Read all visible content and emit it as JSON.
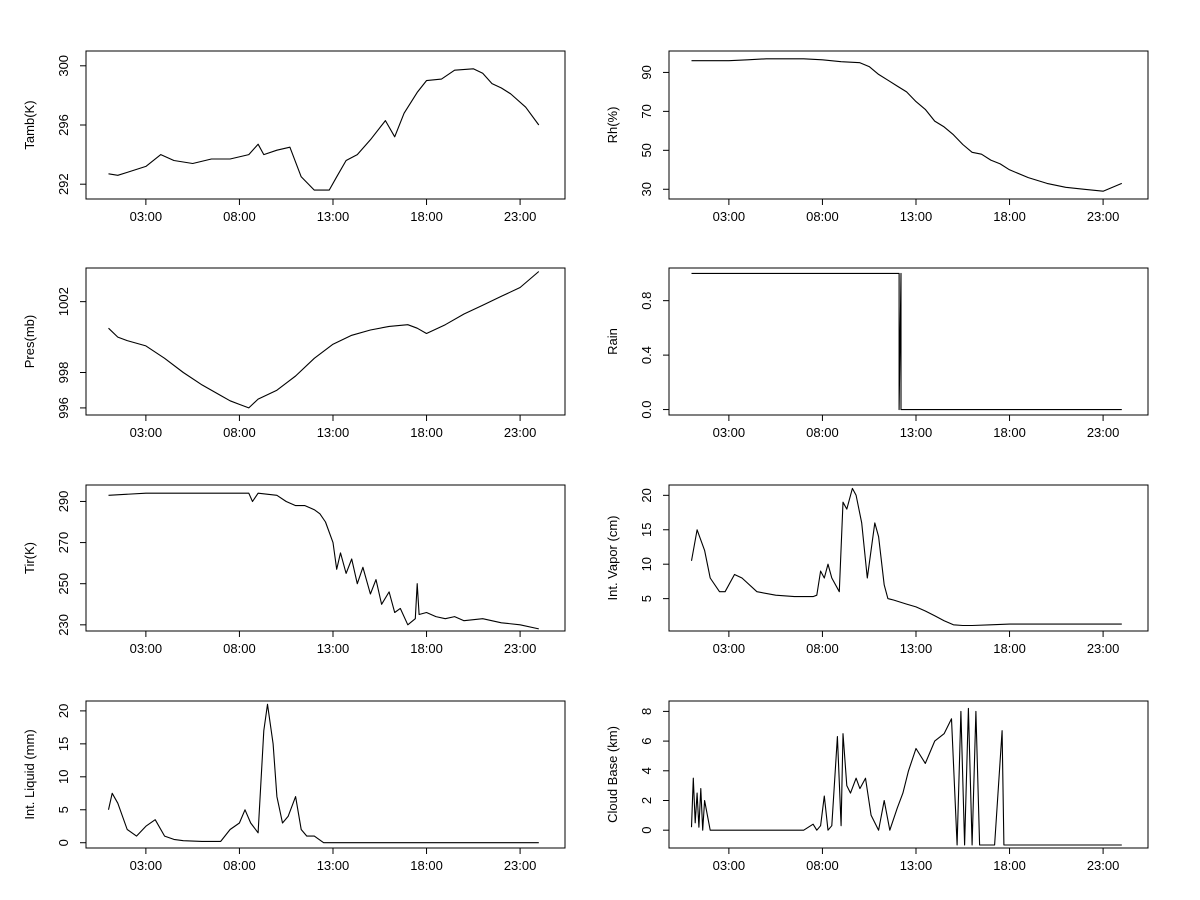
{
  "chart_data": [
    {
      "type": "line",
      "ylabel": "Tamb(K)",
      "xlabel": "",
      "title": "",
      "xticks": [
        "03:00",
        "08:00",
        "13:00",
        "18:00",
        "23:00"
      ],
      "yticks": [
        292,
        296,
        300
      ],
      "ylim": [
        291.0,
        301.0
      ],
      "xlim": [
        -0.2,
        25.4
      ],
      "series": [
        {
          "name": "Tamb",
          "x": [
            1,
            1.5,
            2,
            3,
            3.8,
            4.5,
            5.5,
            6.5,
            7.5,
            8.5,
            9,
            9.3,
            10,
            10.7,
            11.3,
            12,
            12.8,
            13.2,
            13.7,
            14.3,
            15,
            15.8,
            16.3,
            16.8,
            17.5,
            18,
            18.8,
            19.5,
            20.5,
            21,
            21.5,
            22,
            22.5,
            23.3,
            24
          ],
          "y": [
            292.7,
            292.6,
            292.8,
            293.2,
            294.0,
            293.6,
            293.4,
            293.7,
            293.7,
            294.0,
            294.7,
            294.0,
            294.3,
            294.5,
            292.5,
            291.6,
            291.6,
            292.5,
            293.6,
            294.0,
            295.0,
            296.3,
            295.2,
            296.8,
            298.2,
            299.0,
            299.1,
            299.7,
            299.8,
            299.5,
            298.8,
            298.5,
            298.1,
            297.2,
            296.0
          ]
        }
      ]
    },
    {
      "type": "line",
      "ylabel": "Rh(%)",
      "xlabel": "",
      "title": "",
      "xticks": [
        "03:00",
        "08:00",
        "13:00",
        "18:00",
        "23:00"
      ],
      "yticks": [
        30,
        50,
        70,
        90
      ],
      "ylim": [
        25.0,
        101.0
      ],
      "xlim": [
        -0.2,
        25.4
      ],
      "series": [
        {
          "name": "Rh",
          "x": [
            1,
            2,
            3,
            4,
            5,
            6,
            7,
            8,
            9,
            10,
            10.5,
            11,
            11.5,
            12,
            12.5,
            13,
            13.5,
            14,
            14.5,
            15,
            15.5,
            16,
            16.5,
            17,
            17.5,
            18,
            19,
            20,
            21,
            22,
            23,
            24
          ],
          "y": [
            96,
            96,
            96,
            96.5,
            97,
            97,
            97,
            96.5,
            95.5,
            95,
            93,
            89,
            86,
            83,
            80,
            75,
            71,
            65,
            62,
            58,
            53,
            49,
            48,
            45,
            43,
            40,
            36,
            33,
            31,
            30,
            29,
            33
          ]
        }
      ]
    },
    {
      "type": "line",
      "ylabel": "Pres(mb)",
      "xlabel": "",
      "title": "",
      "xticks": [
        "03:00",
        "08:00",
        "13:00",
        "18:00",
        "23:00"
      ],
      "yticks": [
        996,
        998,
        1002
      ],
      "ylim": [
        995.6,
        1003.9
      ],
      "xlim": [
        -0.2,
        25.4
      ],
      "series": [
        {
          "name": "Pres",
          "x": [
            1,
            1.5,
            2,
            3,
            4,
            5,
            6,
            7,
            7.5,
            8,
            8.5,
            9,
            10,
            11,
            12,
            13,
            14,
            15,
            16,
            17,
            17.5,
            18,
            19,
            20,
            21,
            22,
            23,
            24
          ],
          "y": [
            1000.5,
            1000.0,
            999.8,
            999.5,
            998.8,
            998.0,
            997.3,
            996.7,
            996.4,
            996.2,
            996.0,
            996.5,
            997.0,
            997.8,
            998.8,
            999.6,
            1000.1,
            1000.4,
            1000.6,
            1000.7,
            1000.5,
            1000.2,
            1000.7,
            1001.3,
            1001.8,
            1002.3,
            1002.8,
            1003.7
          ]
        }
      ]
    },
    {
      "type": "line",
      "ylabel": "Rain",
      "xlabel": "",
      "title": "",
      "xticks": [
        "03:00",
        "08:00",
        "13:00",
        "18:00",
        "23:00"
      ],
      "yticks": [
        "0.0",
        "0.4",
        "0.8"
      ],
      "ylim": [
        -0.04,
        1.04
      ],
      "xlim": [
        -0.2,
        25.4
      ],
      "series": [
        {
          "name": "Rain",
          "x": [
            1,
            12.1,
            12.1,
            12.2,
            12.2,
            24
          ],
          "y": [
            1,
            1,
            0,
            1,
            0,
            0
          ]
        }
      ]
    },
    {
      "type": "line",
      "ylabel": "Tir(K)",
      "xlabel": "",
      "title": "",
      "xticks": [
        "03:00",
        "08:00",
        "13:00",
        "18:00",
        "23:00"
      ],
      "yticks": [
        230,
        250,
        270,
        290
      ],
      "ylim": [
        227.0,
        298.0
      ],
      "xlim": [
        -0.2,
        25.4
      ],
      "series": [
        {
          "name": "Tir",
          "x": [
            1,
            3,
            5,
            6,
            7,
            8,
            8.5,
            8.7,
            9,
            10,
            10.5,
            11,
            11.5,
            12,
            12.3,
            12.6,
            13,
            13.2,
            13.4,
            13.7,
            14,
            14.3,
            14.6,
            15,
            15.3,
            15.6,
            16,
            16.3,
            16.6,
            17,
            17.4,
            17.5,
            17.6,
            18,
            18.5,
            19,
            19.5,
            20,
            21,
            22,
            23,
            24
          ],
          "y": [
            293,
            294,
            294,
            294,
            294,
            294,
            294,
            290,
            294,
            293,
            290,
            288,
            288,
            286,
            284,
            280,
            270,
            257,
            265,
            255,
            262,
            250,
            258,
            245,
            252,
            240,
            246,
            236,
            238,
            230,
            233,
            250,
            235,
            236,
            234,
            233,
            234,
            232,
            233,
            231,
            230,
            228
          ]
        }
      ]
    },
    {
      "type": "line",
      "ylabel": "Int. Vapor (cm)",
      "xlabel": "",
      "title": "",
      "xticks": [
        "03:00",
        "08:00",
        "13:00",
        "18:00",
        "23:00"
      ],
      "yticks": [
        5,
        10,
        15,
        20
      ],
      "ylim": [
        0.3,
        21.5
      ],
      "xlim": [
        -0.2,
        25.4
      ],
      "series": [
        {
          "name": "Int. Vapor",
          "x": [
            1,
            1.3,
            1.7,
            2,
            2.5,
            2.8,
            3.3,
            3.7,
            4.5,
            5.5,
            6.5,
            7.5,
            7.7,
            7.9,
            8.1,
            8.3,
            8.5,
            8.9,
            9.1,
            9.3,
            9.6,
            9.8,
            10.1,
            10.4,
            10.8,
            11,
            11.3,
            11.5,
            11.8,
            12.5,
            13,
            13.5,
            14,
            14.5,
            15,
            15.5,
            16,
            17,
            18,
            20,
            22,
            24
          ],
          "y": [
            10.5,
            15,
            12,
            8,
            6,
            6,
            8.5,
            8,
            6,
            5.5,
            5.3,
            5.3,
            5.5,
            9,
            8,
            10,
            8,
            6,
            19,
            18,
            21,
            20,
            16,
            8,
            16,
            14,
            7,
            5,
            4.8,
            4.2,
            3.8,
            3.2,
            2.5,
            1.8,
            1.2,
            1.1,
            1.1,
            1.2,
            1.3,
            1.3,
            1.3,
            1.3
          ]
        }
      ]
    },
    {
      "type": "line",
      "ylabel": "Int. Liquid (mm)",
      "xlabel": "",
      "title": "",
      "xticks": [
        "03:00",
        "08:00",
        "13:00",
        "18:00",
        "23:00"
      ],
      "yticks": [
        0,
        5,
        10,
        15,
        20
      ],
      "ylim": [
        -0.8,
        21.5
      ],
      "xlim": [
        -0.2,
        25.4
      ],
      "series": [
        {
          "name": "Int. Liquid",
          "x": [
            1,
            1.2,
            1.5,
            2,
            2.5,
            3,
            3.5,
            4,
            4.5,
            5,
            6,
            7,
            7.5,
            8,
            8.3,
            8.6,
            9,
            9.3,
            9.5,
            9.8,
            10,
            10.3,
            10.6,
            11,
            11.3,
            11.6,
            12,
            12.5,
            13,
            15,
            18,
            21,
            24
          ],
          "y": [
            5,
            7.5,
            6,
            2,
            1,
            2.5,
            3.5,
            1,
            0.5,
            0.3,
            0.2,
            0.2,
            2,
            3,
            5,
            3,
            1.5,
            17,
            21,
            15,
            7,
            3,
            4,
            7,
            2,
            1,
            1,
            0,
            0,
            0,
            0,
            0,
            0
          ]
        }
      ]
    },
    {
      "type": "line",
      "ylabel": "Cloud Base (km)",
      "xlabel": "",
      "title": "",
      "xticks": [
        "03:00",
        "08:00",
        "13:00",
        "18:00",
        "23:00"
      ],
      "yticks": [
        0,
        2,
        4,
        6,
        8
      ],
      "ylim": [
        -1.2,
        8.7
      ],
      "xlim": [
        -0.2,
        25.4
      ],
      "series": [
        {
          "name": "Cloud Base",
          "x": [
            1,
            1.1,
            1.2,
            1.3,
            1.4,
            1.5,
            1.6,
            1.7,
            2,
            3,
            4,
            5,
            6,
            7,
            7.5,
            7.7,
            7.9,
            8.1,
            8.3,
            8.5,
            8.8,
            9,
            9.1,
            9.3,
            9.5,
            9.8,
            10,
            10.3,
            10.6,
            11,
            11.3,
            11.6,
            12,
            12.3,
            12.6,
            13,
            13.5,
            14,
            14.5,
            14.9,
            15.2,
            15.4,
            15.6,
            15.8,
            16,
            16.2,
            16.4,
            16.5,
            17,
            17.2,
            17.6,
            17.7,
            18,
            20,
            24
          ],
          "y": [
            0.2,
            3.5,
            0.5,
            2.5,
            0.2,
            2.8,
            0,
            2,
            0,
            0,
            0,
            0,
            0,
            0,
            0.4,
            0,
            0.3,
            2.3,
            0,
            0.3,
            6.3,
            0.3,
            6.5,
            3,
            2.5,
            3.5,
            2.8,
            3.5,
            1,
            0,
            2,
            0,
            1.5,
            2.5,
            4,
            5.5,
            4.5,
            6,
            6.5,
            7.5,
            -1,
            8,
            -1,
            8.2,
            -1,
            8,
            -1,
            -1,
            -1,
            -1,
            6.7,
            -1,
            -1,
            -1,
            -1
          ]
        }
      ]
    }
  ]
}
